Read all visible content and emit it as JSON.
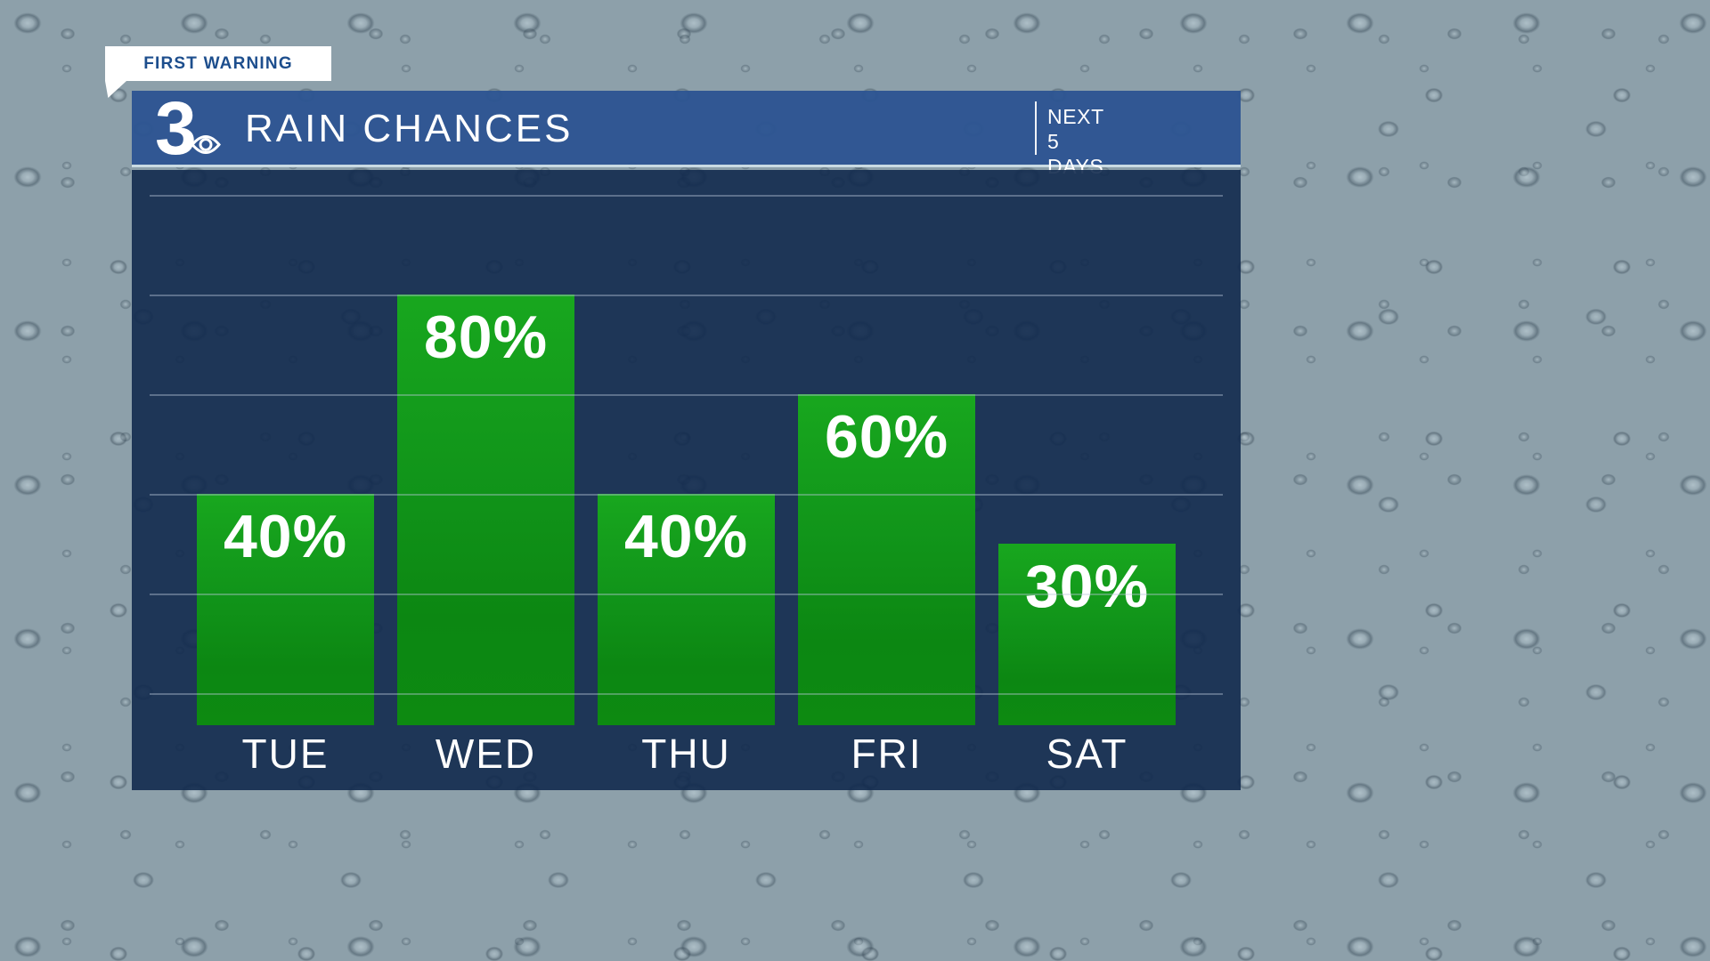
{
  "first_warning_tab": {
    "label": "FIRST WARNING"
  },
  "header": {
    "station_logo": "3",
    "logo_icon": "cbs-eye",
    "title": "RAIN CHANCES",
    "timeframe_line1": "NEXT",
    "timeframe_line2": "5 DAYS"
  },
  "chart_data": {
    "type": "bar",
    "title": "RAIN CHANCES",
    "subtitle": "NEXT 5 DAYS",
    "categories": [
      "TUE",
      "WED",
      "THU",
      "FRI",
      "SAT"
    ],
    "values": [
      40,
      80,
      40,
      60,
      30
    ],
    "labels": [
      "40%",
      "80%",
      "40%",
      "60%",
      "30%"
    ],
    "ylabel": "",
    "xlabel": "",
    "ylim": [
      0,
      100
    ],
    "grid": true,
    "gridline_step_percent": 20,
    "legend": "none",
    "value_label_position": "inside-top",
    "bar_color": "#18a71e"
  },
  "colors": {
    "header_blue": "#2d5492",
    "panel_navy": "#122a4e",
    "header_separator": "#c9dae3",
    "bar_green_top": "#18a71e",
    "bar_green_bottom": "#0d8a11",
    "text_white": "#ffffff",
    "tab_text_blue": "#1d4e8d",
    "gridline": "rgba(186,201,218,0.40)"
  }
}
